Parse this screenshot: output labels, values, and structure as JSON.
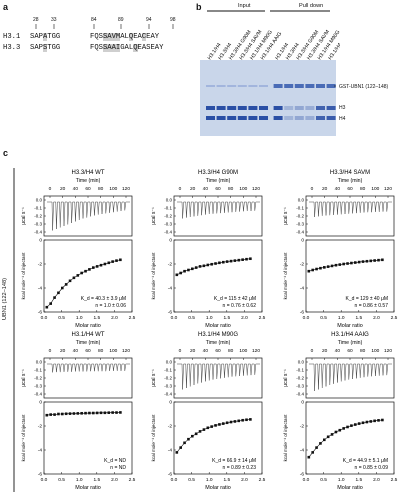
{
  "panel_a": {
    "label": "a",
    "residue_numbers": [
      "28",
      "33",
      "84",
      "89",
      "94",
      "98"
    ],
    "sequences": [
      {
        "name": "H3.1",
        "left": [
          "SAP",
          "A",
          "TGG"
        ],
        "right": [
          "FQS",
          "SAV",
          "M",
          "AL",
          "Q",
          "EA",
          "C",
          "EAY"
        ]
      },
      {
        "name": "H3.3",
        "left": [
          "SAP",
          "S",
          "TGG"
        ],
        "right": [
          "FQS",
          "SAA",
          "I",
          "GAL",
          "Q",
          "EAS",
          "EAY"
        ]
      }
    ]
  },
  "panel_b": {
    "label": "b",
    "group_input": "Input",
    "group_pulldown": "Pull down",
    "lanes": [
      "H3.1/H4",
      "H3.3/H4",
      "H3.3/H4 G90M",
      "H3.3/H4 SAVM",
      "H3.1/H4 M90G",
      "H3.1/H4 AAIG",
      "H3.1/H4",
      "H3.3/H4",
      "H3.3/H4 G90M",
      "H3.3/H4 SAVM",
      "H3.1/H4 M90G",
      "H3.1/H4 AAIG"
    ],
    "band_labels": [
      "GST-UBN1 (122–148)",
      "H3",
      "H4"
    ]
  },
  "panel_c": {
    "label": "c",
    "side_label": "UBN1 (122–148)",
    "x_axis_label": "Molar ratio",
    "top_axis_label": "Time (min)",
    "raw_ylabel": "μcal s⁻¹",
    "int_ylabel": "kcal mole⁻¹ of injectant"
  },
  "chart_data": [
    {
      "type": "scatter",
      "title": "H3.3/H4 WT",
      "x": [
        0.08,
        0.19,
        0.3,
        0.41,
        0.52,
        0.63,
        0.74,
        0.85,
        0.96,
        1.07,
        1.18,
        1.29,
        1.4,
        1.51,
        1.62,
        1.73,
        1.84,
        1.95,
        2.06,
        2.17
      ],
      "y": [
        -5.6,
        -5.3,
        -4.8,
        -4.4,
        -4.0,
        -3.7,
        -3.4,
        -3.15,
        -2.95,
        -2.75,
        -2.6,
        -2.45,
        -2.3,
        -2.2,
        -2.1,
        -2.0,
        -1.9,
        -1.8,
        -1.72,
        -1.65
      ],
      "xlim": [
        0,
        2.5
      ],
      "ylim": [
        -6,
        0
      ],
      "xticks": [
        "0.0",
        "0.5",
        "1.0",
        "1.5",
        "2.0",
        "2.5"
      ],
      "yticks": [
        "0",
        "-2",
        "-4",
        "-6"
      ],
      "kd": "K_d = 40.3 ± 3.9 μM",
      "n": "n = 1.0 ± 0.06"
    },
    {
      "type": "scatter",
      "title": "H3.3/H4 G90M",
      "x": [
        0.08,
        0.19,
        0.3,
        0.41,
        0.52,
        0.63,
        0.74,
        0.85,
        0.96,
        1.07,
        1.18,
        1.29,
        1.4,
        1.51,
        1.62,
        1.73,
        1.84,
        1.95,
        2.06,
        2.17
      ],
      "y": [
        -2.9,
        -2.75,
        -2.6,
        -2.5,
        -2.4,
        -2.3,
        -2.2,
        -2.15,
        -2.08,
        -2.02,
        -1.96,
        -1.9,
        -1.85,
        -1.8,
        -1.76,
        -1.72,
        -1.68,
        -1.64,
        -1.6,
        -1.56
      ],
      "xlim": [
        0,
        2.5
      ],
      "ylim": [
        -6,
        0
      ],
      "xticks": [
        "0.0",
        "0.5",
        "1.0",
        "1.5",
        "2.0",
        "2.5"
      ],
      "yticks": [
        "0",
        "-2",
        "-4",
        "-6"
      ],
      "kd": "K_d = 115 ± 42 μM",
      "n": "n = 0.76 ± 0.62"
    },
    {
      "type": "scatter",
      "title": "H3.3/H4 SAVM",
      "x": [
        0.08,
        0.19,
        0.3,
        0.41,
        0.52,
        0.63,
        0.74,
        0.85,
        0.96,
        1.07,
        1.18,
        1.29,
        1.4,
        1.51,
        1.62,
        1.73,
        1.84,
        1.95,
        2.06,
        2.17
      ],
      "y": [
        -2.6,
        -2.5,
        -2.42,
        -2.35,
        -2.28,
        -2.22,
        -2.16,
        -2.1,
        -2.05,
        -2.0,
        -1.96,
        -1.92,
        -1.88,
        -1.84,
        -1.8,
        -1.77,
        -1.74,
        -1.71,
        -1.68,
        -1.65
      ],
      "xlim": [
        0,
        2.5
      ],
      "ylim": [
        -6,
        0
      ],
      "xticks": [
        "0.0",
        "0.5",
        "1.0",
        "1.5",
        "2.0",
        "2.5"
      ],
      "yticks": [
        "0",
        "-2",
        "-4",
        "-6"
      ],
      "kd": "K_d = 129 ± 40 μM",
      "n": "n = 0.86 ± 0.57"
    },
    {
      "type": "scatter",
      "title": "H3.1/H4 WT",
      "x": [
        0.08,
        0.19,
        0.3,
        0.41,
        0.52,
        0.63,
        0.74,
        0.85,
        0.96,
        1.07,
        1.18,
        1.29,
        1.4,
        1.51,
        1.62,
        1.73,
        1.84,
        1.95,
        2.06,
        2.17
      ],
      "y": [
        -1.1,
        -1.05,
        -1.05,
        -1.0,
        -1.0,
        -0.98,
        -0.97,
        -0.96,
        -0.95,
        -0.94,
        -0.93,
        -0.92,
        -0.92,
        -0.91,
        -0.9,
        -0.9,
        -0.89,
        -0.88,
        -0.88,
        -0.87
      ],
      "xlim": [
        0,
        2.5
      ],
      "ylim": [
        -6,
        0
      ],
      "xticks": [
        "0.0",
        "0.5",
        "1.0",
        "1.5",
        "2.0",
        "2.5"
      ],
      "yticks": [
        "0",
        "-2",
        "-4",
        "-6"
      ],
      "kd": "K_d = ND",
      "n": "n = ND"
    },
    {
      "type": "scatter",
      "title": "H3.1/H4 M90G",
      "x": [
        0.08,
        0.19,
        0.3,
        0.41,
        0.52,
        0.63,
        0.74,
        0.85,
        0.96,
        1.07,
        1.18,
        1.29,
        1.4,
        1.51,
        1.62,
        1.73,
        1.84,
        1.95,
        2.06,
        2.17
      ],
      "y": [
        -4.2,
        -3.8,
        -3.4,
        -3.1,
        -2.85,
        -2.65,
        -2.45,
        -2.3,
        -2.15,
        -2.05,
        -1.95,
        -1.87,
        -1.8,
        -1.73,
        -1.67,
        -1.62,
        -1.57,
        -1.52,
        -1.48,
        -1.45
      ],
      "xlim": [
        0,
        2.5
      ],
      "ylim": [
        -6,
        0
      ],
      "xticks": [
        "0.0",
        "0.5",
        "1.0",
        "1.5",
        "2.0",
        "2.5"
      ],
      "yticks": [
        "0",
        "-2",
        "-4",
        "-6"
      ],
      "kd": "K_d = 66.9 ± 14 μM",
      "n": "n = 0.89 ± 0.23"
    },
    {
      "type": "scatter",
      "title": "H3.1/H4 AAIG",
      "x": [
        0.08,
        0.19,
        0.3,
        0.41,
        0.52,
        0.63,
        0.74,
        0.85,
        0.96,
        1.07,
        1.18,
        1.29,
        1.4,
        1.51,
        1.62,
        1.73,
        1.84,
        1.95,
        2.06,
        2.17
      ],
      "y": [
        -4.6,
        -4.2,
        -3.8,
        -3.45,
        -3.15,
        -2.9,
        -2.7,
        -2.5,
        -2.35,
        -2.2,
        -2.08,
        -1.97,
        -1.88,
        -1.8,
        -1.73,
        -1.67,
        -1.62,
        -1.57,
        -1.53,
        -1.5
      ],
      "xlim": [
        0,
        2.5
      ],
      "ylim": [
        -6,
        0
      ],
      "xticks": [
        "0.0",
        "0.5",
        "1.0",
        "1.5",
        "2.0",
        "2.5"
      ],
      "yticks": [
        "0",
        "-2",
        "-4",
        "-6"
      ],
      "kd": "K_d = 44.9 ± 5.1 μM",
      "n": "n = 0.85 ± 0.09"
    }
  ],
  "raw_panels": [
    {
      "peaks": [
        0.95,
        0.9,
        0.85,
        0.8,
        0.75,
        0.7,
        0.65,
        0.6,
        0.55,
        0.52,
        0.48,
        0.45,
        0.42,
        0.4,
        0.38,
        0.36,
        0.34,
        0.32,
        0.3,
        0.28
      ]
    },
    {
      "peaks": [
        0.55,
        0.52,
        0.5,
        0.48,
        0.46,
        0.44,
        0.42,
        0.4,
        0.39,
        0.38,
        0.37,
        0.36,
        0.35,
        0.34,
        0.33,
        0.32,
        0.31,
        0.3,
        0.3,
        0.29
      ]
    },
    {
      "peaks": [
        0.5,
        0.48,
        0.46,
        0.45,
        0.44,
        0.43,
        0.42,
        0.41,
        0.4,
        0.39,
        0.38,
        0.37,
        0.36,
        0.35,
        0.34,
        0.34,
        0.33,
        0.33,
        0.32,
        0.32
      ]
    },
    {
      "peaks": [
        0.28,
        0.27,
        0.27,
        0.26,
        0.26,
        0.26,
        0.25,
        0.25,
        0.25,
        0.25,
        0.24,
        0.24,
        0.24,
        0.24,
        0.24,
        0.23,
        0.23,
        0.23,
        0.23,
        0.23
      ]
    },
    {
      "peaks": [
        0.85,
        0.8,
        0.75,
        0.7,
        0.65,
        0.62,
        0.58,
        0.55,
        0.52,
        0.5,
        0.48,
        0.46,
        0.44,
        0.42,
        0.41,
        0.4,
        0.39,
        0.38,
        0.37,
        0.36
      ]
    },
    {
      "peaks": [
        0.9,
        0.85,
        0.8,
        0.75,
        0.7,
        0.66,
        0.62,
        0.58,
        0.55,
        0.52,
        0.5,
        0.48,
        0.46,
        0.44,
        0.42,
        0.41,
        0.4,
        0.39,
        0.38,
        0.37
      ]
    }
  ],
  "time_ticks": [
    "0",
    "20",
    "40",
    "60",
    "80",
    "100",
    "120"
  ],
  "raw_yticks": [
    "0.0",
    "-0.1",
    "-0.2",
    "-0.3",
    "-0.4"
  ]
}
